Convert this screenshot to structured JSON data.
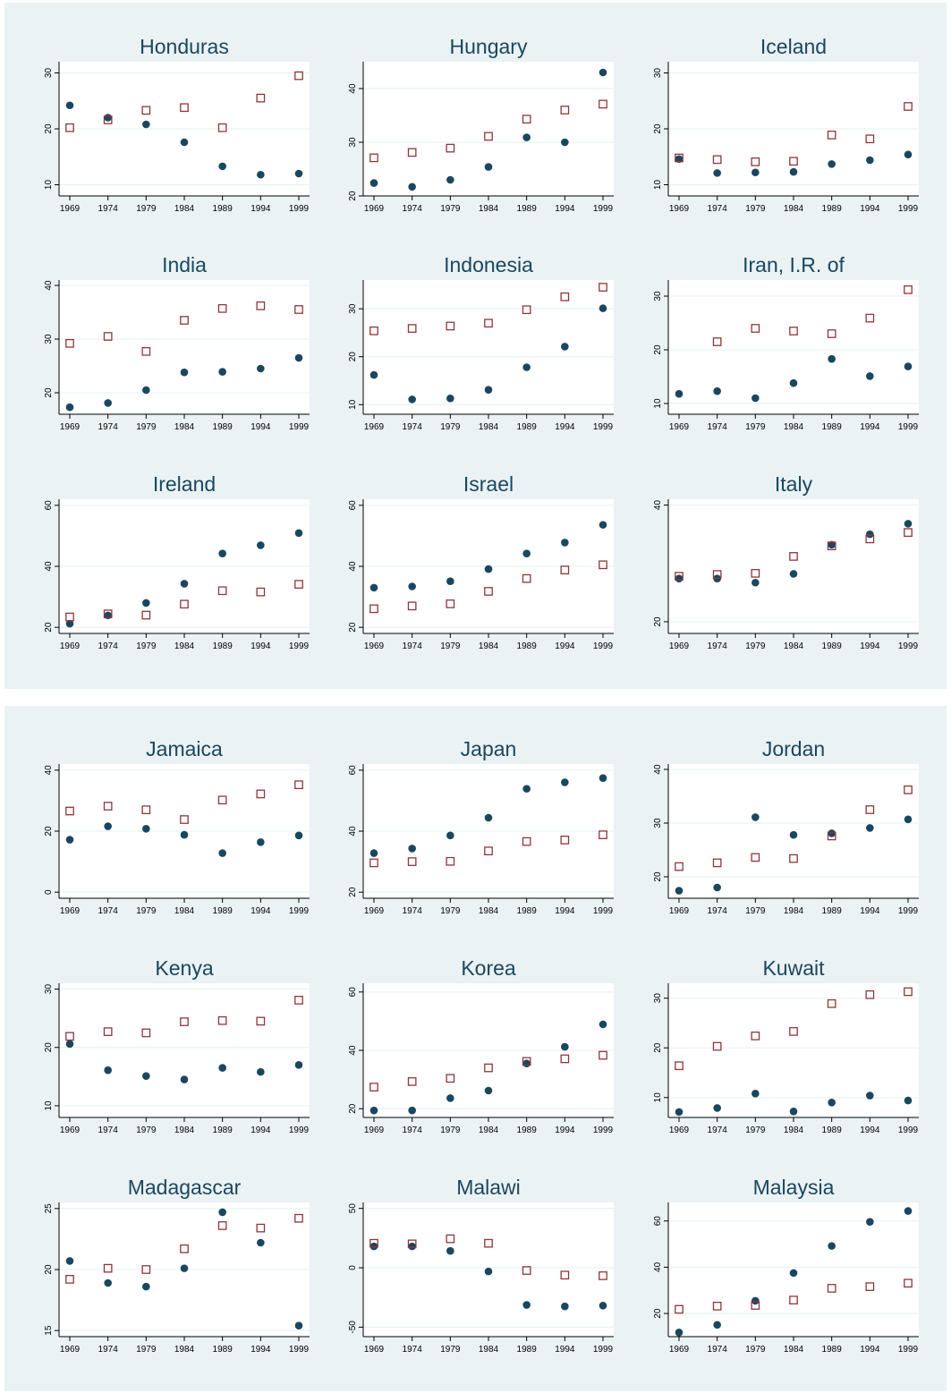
{
  "colors": {
    "background": "#eaf2f3",
    "plot_area": "#ffffff",
    "series_a": "#1a4760",
    "series_b": "#90353b",
    "title": "#1a4760"
  },
  "chart_data": [
    {
      "type": "scatter",
      "title": "Honduras",
      "x": [
        "1969",
        "1974",
        "1979",
        "1984",
        "1989",
        "1994",
        "1999"
      ],
      "yticks": [
        10,
        20,
        30
      ],
      "ylim": [
        8,
        32
      ],
      "series": [
        {
          "marker": "filled-circle",
          "values": [
            24.2,
            22.0,
            20.8,
            17.6,
            13.3,
            11.8,
            12.0
          ]
        },
        {
          "marker": "hollow-square",
          "values": [
            20.2,
            21.6,
            23.3,
            23.8,
            20.2,
            25.5,
            29.5
          ]
        }
      ]
    },
    {
      "type": "scatter",
      "title": "Hungary",
      "x": [
        "1969",
        "1974",
        "1979",
        "1984",
        "1989",
        "1994",
        "1999"
      ],
      "yticks": [
        20,
        30,
        40
      ],
      "ylim": [
        20,
        45
      ],
      "series": [
        {
          "marker": "filled-circle",
          "values": [
            22.4,
            21.7,
            23.0,
            25.4,
            30.9,
            30.0,
            43.0
          ]
        },
        {
          "marker": "hollow-square",
          "values": [
            27.1,
            28.1,
            28.9,
            31.1,
            34.3,
            36.0,
            37.1
          ]
        }
      ]
    },
    {
      "type": "scatter",
      "title": "Iceland",
      "x": [
        "1969",
        "1974",
        "1979",
        "1984",
        "1989",
        "1994",
        "1999"
      ],
      "yticks": [
        10,
        20,
        30
      ],
      "ylim": [
        8,
        32
      ],
      "series": [
        {
          "marker": "filled-circle",
          "values": [
            14.6,
            12.1,
            12.2,
            12.3,
            13.7,
            14.4,
            15.4
          ]
        },
        {
          "marker": "hollow-square",
          "values": [
            14.8,
            14.5,
            14.1,
            14.2,
            18.9,
            18.2,
            24.0
          ]
        }
      ]
    },
    {
      "type": "scatter",
      "title": "India",
      "x": [
        "1969",
        "1974",
        "1979",
        "1984",
        "1989",
        "1994",
        "1999"
      ],
      "yticks": [
        20,
        30,
        40
      ],
      "ylim": [
        16,
        41
      ],
      "series": [
        {
          "marker": "filled-circle",
          "values": [
            17.3,
            18.1,
            20.5,
            23.8,
            23.9,
            24.5,
            26.5
          ]
        },
        {
          "marker": "hollow-square",
          "values": [
            29.2,
            30.5,
            27.7,
            33.5,
            35.7,
            36.2,
            35.5
          ]
        }
      ]
    },
    {
      "type": "scatter",
      "title": "Indonesia",
      "x": [
        "1969",
        "1974",
        "1979",
        "1984",
        "1989",
        "1994",
        "1999"
      ],
      "yticks": [
        10,
        20,
        30
      ],
      "ylim": [
        8,
        36
      ],
      "series": [
        {
          "marker": "filled-circle",
          "values": [
            16.2,
            11.1,
            11.3,
            13.1,
            17.8,
            22.1,
            30.1
          ]
        },
        {
          "marker": "hollow-square",
          "values": [
            25.4,
            25.9,
            26.4,
            27.0,
            29.8,
            32.5,
            34.5
          ]
        }
      ]
    },
    {
      "type": "scatter",
      "title": "Iran, I.R. of",
      "x": [
        "1969",
        "1974",
        "1979",
        "1984",
        "1989",
        "1994",
        "1999"
      ],
      "yticks": [
        10,
        20,
        30
      ],
      "ylim": [
        8,
        33
      ],
      "series": [
        {
          "marker": "filled-circle",
          "values": [
            11.8,
            12.3,
            11.0,
            13.8,
            18.3,
            15.1,
            16.9
          ]
        },
        {
          "marker": "hollow-square",
          "values": [
            null,
            21.5,
            24.0,
            23.5,
            23.0,
            25.9,
            31.2
          ]
        }
      ]
    },
    {
      "type": "scatter",
      "title": "Ireland",
      "x": [
        "1969",
        "1974",
        "1979",
        "1984",
        "1989",
        "1994",
        "1999"
      ],
      "yticks": [
        20,
        40,
        60
      ],
      "ylim": [
        18,
        62
      ],
      "series": [
        {
          "marker": "filled-circle",
          "values": [
            21.2,
            23.9,
            28.0,
            34.3,
            44.2,
            46.9,
            50.9
          ]
        },
        {
          "marker": "hollow-square",
          "values": [
            23.4,
            24.4,
            24.0,
            27.6,
            32.0,
            31.6,
            34.1
          ]
        }
      ]
    },
    {
      "type": "scatter",
      "title": "Israel",
      "x": [
        "1969",
        "1974",
        "1979",
        "1984",
        "1989",
        "1994",
        "1999"
      ],
      "yticks": [
        20,
        40,
        60
      ],
      "ylim": [
        18,
        62
      ],
      "series": [
        {
          "marker": "filled-circle",
          "values": [
            33.0,
            33.4,
            35.1,
            39.1,
            44.2,
            47.8,
            53.6
          ]
        },
        {
          "marker": "hollow-square",
          "values": [
            26.1,
            27.0,
            27.7,
            31.8,
            36.0,
            38.8,
            40.5
          ]
        }
      ]
    },
    {
      "type": "scatter",
      "title": "Italy",
      "x": [
        "1969",
        "1974",
        "1979",
        "1984",
        "1989",
        "1994",
        "1999"
      ],
      "yticks": [
        20,
        40
      ],
      "ylim": [
        18,
        41
      ],
      "series": [
        {
          "marker": "filled-circle",
          "values": [
            27.4,
            27.4,
            26.7,
            28.2,
            33.2,
            35.0,
            36.8
          ]
        },
        {
          "marker": "hollow-square",
          "values": [
            27.8,
            28.1,
            28.3,
            31.2,
            33.0,
            34.2,
            35.3
          ]
        }
      ]
    },
    {
      "type": "scatter",
      "title": "Jamaica",
      "x": [
        "1969",
        "1974",
        "1979",
        "1984",
        "1989",
        "1994",
        "1999"
      ],
      "yticks": [
        0,
        20,
        40
      ],
      "ylim": [
        -2,
        42
      ],
      "series": [
        {
          "marker": "filled-circle",
          "values": [
            17.2,
            21.6,
            20.8,
            18.8,
            12.8,
            16.4,
            18.6
          ]
        },
        {
          "marker": "hollow-square",
          "values": [
            26.6,
            28.2,
            27.0,
            23.8,
            30.2,
            32.2,
            35.2
          ]
        }
      ]
    },
    {
      "type": "scatter",
      "title": "Japan",
      "x": [
        "1969",
        "1974",
        "1979",
        "1984",
        "1989",
        "1994",
        "1999"
      ],
      "yticks": [
        20,
        40,
        60
      ],
      "ylim": [
        18,
        62
      ],
      "series": [
        {
          "marker": "filled-circle",
          "values": [
            32.8,
            34.3,
            38.6,
            44.4,
            53.9,
            56.0,
            57.4
          ]
        },
        {
          "marker": "hollow-square",
          "values": [
            29.6,
            30.0,
            30.1,
            33.5,
            36.6,
            37.1,
            38.8
          ]
        }
      ]
    },
    {
      "type": "scatter",
      "title": "Jordan",
      "x": [
        "1969",
        "1974",
        "1979",
        "1984",
        "1989",
        "1994",
        "1999"
      ],
      "yticks": [
        20,
        30,
        40
      ],
      "ylim": [
        16,
        41
      ],
      "series": [
        {
          "marker": "filled-circle",
          "values": [
            17.4,
            18.0,
            31.1,
            27.8,
            28.1,
            29.1,
            30.7
          ]
        },
        {
          "marker": "hollow-square",
          "values": [
            21.9,
            22.6,
            23.6,
            23.4,
            27.6,
            32.5,
            36.2
          ]
        }
      ]
    },
    {
      "type": "scatter",
      "title": "Kenya",
      "x": [
        "1969",
        "1974",
        "1979",
        "1984",
        "1989",
        "1994",
        "1999"
      ],
      "yticks": [
        10,
        20,
        30
      ],
      "ylim": [
        8,
        31
      ],
      "series": [
        {
          "marker": "filled-circle",
          "values": [
            20.6,
            16.1,
            15.1,
            14.5,
            16.5,
            15.8,
            17.0
          ]
        },
        {
          "marker": "hollow-square",
          "values": [
            21.9,
            22.7,
            22.5,
            24.4,
            24.6,
            24.5,
            28.1
          ]
        }
      ]
    },
    {
      "type": "scatter",
      "title": "Korea",
      "x": [
        "1969",
        "1974",
        "1979",
        "1984",
        "1989",
        "1994",
        "1999"
      ],
      "yticks": [
        20,
        40,
        60
      ],
      "ylim": [
        17,
        63
      ],
      "series": [
        {
          "marker": "filled-circle",
          "values": [
            19.4,
            19.4,
            23.6,
            26.2,
            35.5,
            41.2,
            48.9
          ]
        },
        {
          "marker": "hollow-square",
          "values": [
            27.4,
            29.3,
            30.4,
            34.0,
            36.2,
            37.1,
            38.3
          ]
        }
      ]
    },
    {
      "type": "scatter",
      "title": "Kuwait",
      "x": [
        "1969",
        "1974",
        "1979",
        "1984",
        "1989",
        "1994",
        "1999"
      ],
      "yticks": [
        10,
        20,
        30
      ],
      "ylim": [
        6,
        33
      ],
      "series": [
        {
          "marker": "filled-circle",
          "values": [
            7.1,
            7.9,
            10.8,
            7.2,
            9.0,
            10.4,
            9.4
          ]
        },
        {
          "marker": "hollow-square",
          "values": [
            16.4,
            20.3,
            22.4,
            23.3,
            28.9,
            30.7,
            31.3
          ]
        }
      ]
    },
    {
      "type": "scatter",
      "title": "Madagascar",
      "x": [
        "1969",
        "1974",
        "1979",
        "1984",
        "1989",
        "1994",
        "1999"
      ],
      "yticks": [
        15,
        20,
        25
      ],
      "ylim": [
        14.5,
        25.5
      ],
      "series": [
        {
          "marker": "filled-circle",
          "values": [
            20.7,
            18.9,
            18.6,
            20.1,
            24.7,
            22.2,
            15.4
          ]
        },
        {
          "marker": "hollow-square",
          "values": [
            19.2,
            20.1,
            20.0,
            21.7,
            23.6,
            23.4,
            24.2
          ]
        }
      ]
    },
    {
      "type": "scatter",
      "title": "Malawi",
      "x": [
        "1969",
        "1974",
        "1979",
        "1984",
        "1989",
        "1994",
        "1999"
      ],
      "yticks": [
        -50,
        0,
        50
      ],
      "ylim": [
        -58,
        55
      ],
      "series": [
        {
          "marker": "filled-circle",
          "values": [
            18.0,
            18.0,
            14.2,
            -3.1,
            -31.3,
            -32.5,
            -31.9
          ]
        },
        {
          "marker": "hollow-square",
          "values": [
            20.6,
            20.1,
            24.4,
            20.6,
            -2.3,
            -6.2,
            -6.7
          ]
        }
      ]
    },
    {
      "type": "scatter",
      "title": "Malaysia",
      "x": [
        "1969",
        "1974",
        "1979",
        "1984",
        "1989",
        "1994",
        "1999"
      ],
      "yticks": [
        20,
        40,
        60
      ],
      "ylim": [
        10,
        68
      ],
      "series": [
        {
          "marker": "filled-circle",
          "values": [
            11.8,
            15.1,
            25.5,
            37.5,
            49.2,
            59.6,
            64.3
          ]
        },
        {
          "marker": "hollow-square",
          "values": [
            21.8,
            23.2,
            23.5,
            25.8,
            30.9,
            31.6,
            33.1
          ]
        }
      ]
    }
  ]
}
